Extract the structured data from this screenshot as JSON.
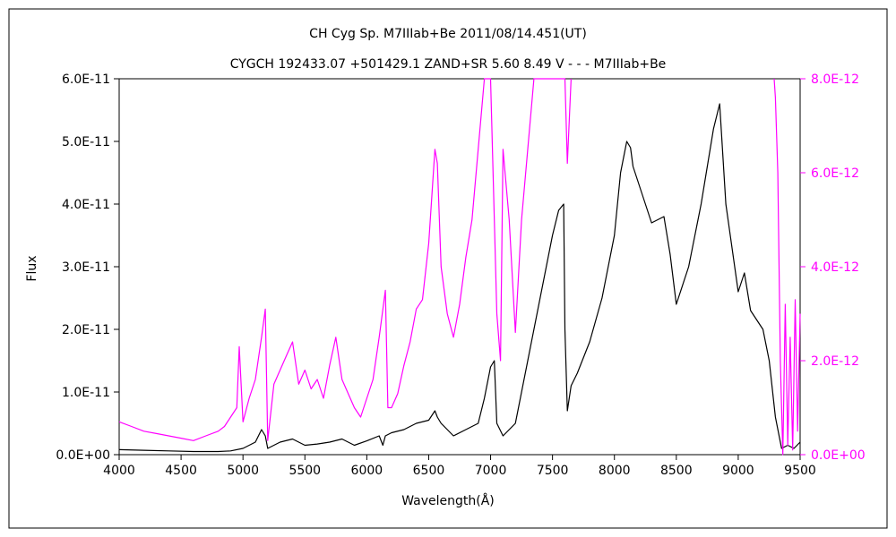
{
  "chart_data": {
    "type": "line",
    "title": "CH Cyg    Sp. M7IIIab+Be    2011/08/14.451(UT)",
    "subtitle": "CYGCH 192433.07 +501429.1 ZAND+SR 5.60  8.49  V - - - M7IIIab+Be",
    "xlabel": "Wavelength(Å)",
    "ylabel": "Flux",
    "xlim": [
      4000,
      9500
    ],
    "ylim": [
      0,
      6e-11
    ],
    "y2lim": [
      0,
      8e-12
    ],
    "grid": false,
    "legend": "none",
    "x_ticks": [
      "4000",
      "4500",
      "5000",
      "5500",
      "6000",
      "6500",
      "7000",
      "7500",
      "8000",
      "8500",
      "9000",
      "9500"
    ],
    "y_ticks": [
      "0.0E+00",
      "1.0E-11",
      "2.0E-11",
      "3.0E-11",
      "4.0E-11",
      "5.0E-11",
      "6.0E-11"
    ],
    "y2_ticks": [
      "0.0E+00",
      "2.0E-12",
      "4.0E-12",
      "6.0E-12",
      "8.0E-12"
    ],
    "colors": {
      "main": "#000000",
      "blue_scaled": "#ff00ff"
    },
    "series": [
      {
        "axis": "left",
        "x": [
          4000,
          4200,
          4400,
          4600,
          4800,
          4900,
          5000,
          5100,
          5150,
          5180,
          5200,
          5300,
          5400,
          5500,
          5600,
          5700,
          5800,
          5900,
          6000,
          6100,
          6130,
          6150,
          6200,
          6300,
          6400,
          6500,
          6550,
          6570,
          6600,
          6700,
          6800,
          6900,
          6950,
          7000,
          7030,
          7050,
          7100,
          7200,
          7300,
          7400,
          7500,
          7550,
          7590,
          7600,
          7620,
          7650,
          7700,
          7800,
          7900,
          8000,
          8050,
          8100,
          8130,
          8150,
          8200,
          8250,
          8300,
          8400,
          8450,
          8500,
          8600,
          8700,
          8800,
          8850,
          8900,
          9000,
          9050,
          9100,
          9200,
          9250,
          9300,
          9350,
          9400,
          9450,
          9500
        ],
        "y": [
          8e-13,
          7e-13,
          6e-13,
          5e-13,
          5e-13,
          6e-13,
          1e-12,
          2e-12,
          4e-12,
          3e-12,
          1e-12,
          2e-12,
          2.5e-12,
          1.5e-12,
          1.7e-12,
          2e-12,
          2.5e-12,
          1.5e-12,
          2.2e-12,
          3e-12,
          1.5e-12,
          3e-12,
          3.5e-12,
          4e-12,
          5e-12,
          5.5e-12,
          7e-12,
          6e-12,
          5e-12,
          3e-12,
          4e-12,
          5e-12,
          9e-12,
          1.4e-11,
          1.5e-11,
          5e-12,
          3e-12,
          5e-12,
          1.5e-11,
          2.5e-11,
          3.5e-11,
          3.9e-11,
          4e-11,
          2e-11,
          7e-12,
          1.1e-11,
          1.3e-11,
          1.8e-11,
          2.5e-11,
          3.5e-11,
          4.5e-11,
          5e-11,
          4.9e-11,
          4.6e-11,
          4.3e-11,
          4e-11,
          3.7e-11,
          3.8e-11,
          3.2e-11,
          2.4e-11,
          3e-11,
          4e-11,
          5.2e-11,
          5.6e-11,
          4e-11,
          2.6e-11,
          2.9e-11,
          2.3e-11,
          2e-11,
          1.5e-11,
          6e-12,
          1e-12,
          1.5e-12,
          1e-12,
          2e-12
        ]
      },
      {
        "axis": "right",
        "x": [
          4000,
          4100,
          4200,
          4300,
          4400,
          4500,
          4600,
          4700,
          4800,
          4850,
          4900,
          4950,
          4970,
          5000,
          5050,
          5100,
          5150,
          5180,
          5200,
          5250,
          5300,
          5350,
          5400,
          5450,
          5500,
          5550,
          5600,
          5650,
          5700,
          5750,
          5800,
          5850,
          5900,
          5950,
          6000,
          6050,
          6100,
          6150,
          6170,
          6200,
          6250,
          6300,
          6350,
          6400,
          6450,
          6500,
          6550,
          6570,
          6600,
          6650,
          6700,
          6750,
          6800,
          6850,
          6900,
          6950,
          7000,
          7050,
          7080,
          7100,
          7150,
          7200,
          7250,
          7300,
          7350,
          7380,
          7400,
          7450,
          7500,
          7550,
          7600,
          7620,
          7650
        ],
        "y": [
          7e-13,
          6e-13,
          5e-13,
          4.5e-13,
          4e-13,
          3.5e-13,
          3e-13,
          4e-13,
          5e-13,
          6e-13,
          8e-13,
          1e-12,
          2.3e-12,
          7e-13,
          1.2e-12,
          1.6e-12,
          2.5e-12,
          3.1e-12,
          3e-13,
          1.5e-12,
          1.8e-12,
          2.1e-12,
          2.4e-12,
          1.5e-12,
          1.8e-12,
          1.4e-12,
          1.6e-12,
          1.2e-12,
          1.9e-12,
          2.5e-12,
          1.6e-12,
          1.3e-12,
          1e-12,
          8e-13,
          1.2e-12,
          1.6e-12,
          2.5e-12,
          3.5e-12,
          1e-12,
          1e-12,
          1.3e-12,
          1.9e-12,
          2.4e-12,
          3.1e-12,
          3.3e-12,
          4.5e-12,
          6.5e-12,
          6.2e-12,
          4e-12,
          3e-12,
          2.5e-12,
          3.2e-12,
          4.2e-12,
          5e-12,
          6.5e-12,
          8e-12,
          8e-12,
          3e-12,
          2e-12,
          6.5e-12,
          5e-12,
          2.6e-12,
          5e-12,
          6.5e-12,
          8e-12,
          8e-12,
          8e-12,
          8e-12,
          8e-12,
          8e-12,
          8e-12,
          6.2e-12,
          8e-12
        ]
      },
      {
        "axis": "right",
        "x": [
          9290,
          9300,
          9320,
          9340,
          9360,
          9380,
          9400,
          9420,
          9440,
          9460,
          9480,
          9500
        ],
        "y": [
          8e-12,
          7.6e-12,
          6e-12,
          2e-12,
          0.0,
          3.2e-12,
          2e-13,
          2.5e-12,
          1e-13,
          3.3e-12,
          5e-13,
          3e-12
        ]
      }
    ]
  }
}
